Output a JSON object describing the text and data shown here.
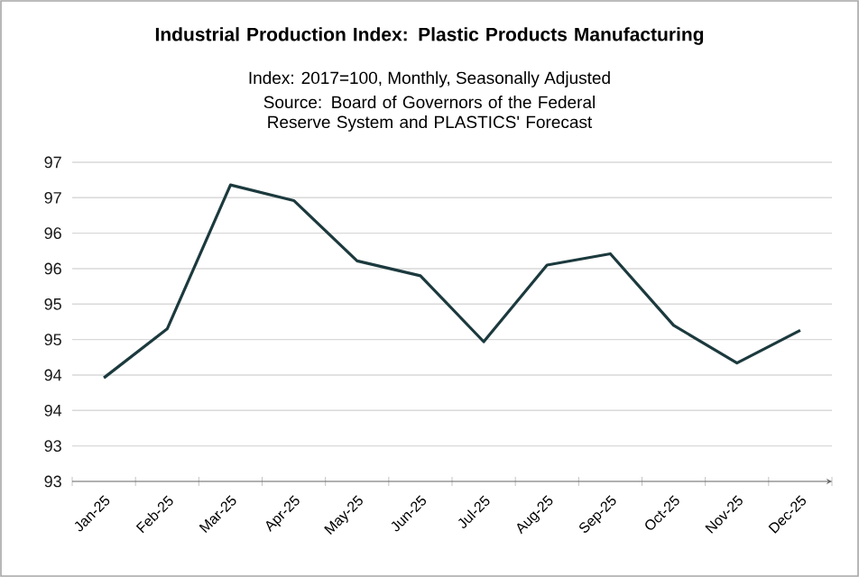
{
  "chart_data": {
    "type": "line",
    "title": "Industrial Production Index: Plastic Products Manufacturing",
    "subtitle": "Index: 2017=100, Monthly, Seasonally Adjusted",
    "annotations": [
      "Source: Board of Governors of the Federal Reserve System and PLASTICS' Forecast"
    ],
    "categories": [
      "Jan-25",
      "Feb-25",
      "Mar-25",
      "Apr-25",
      "May-25",
      "Jun-25",
      "Jul-25",
      "Aug-25",
      "Sep-25",
      "Oct-25",
      "Nov-25",
      "Dec-25"
    ],
    "series": [
      {
        "color": "#1c3a3e",
        "values": [
          93.96,
          94.65,
          96.68,
          96.46,
          95.61,
          95.4,
          94.47,
          95.55,
          95.71,
          94.7,
          94.17,
          94.63
        ]
      }
    ],
    "ylim": [
      92.5,
      97.0
    ],
    "yticks": [
      {
        "value": 92.5,
        "label": "93"
      },
      {
        "value": 93.0,
        "label": "93"
      },
      {
        "value": 93.5,
        "label": "94"
      },
      {
        "value": 94.0,
        "label": "94"
      },
      {
        "value": 94.5,
        "label": "95"
      },
      {
        "value": 95.0,
        "label": "95"
      },
      {
        "value": 95.5,
        "label": "96"
      },
      {
        "value": 96.0,
        "label": "96"
      },
      {
        "value": 96.5,
        "label": "97"
      },
      {
        "value": 97.0,
        "label": "97"
      }
    ],
    "grid": "y",
    "marker": "none",
    "line_style": "solid"
  }
}
